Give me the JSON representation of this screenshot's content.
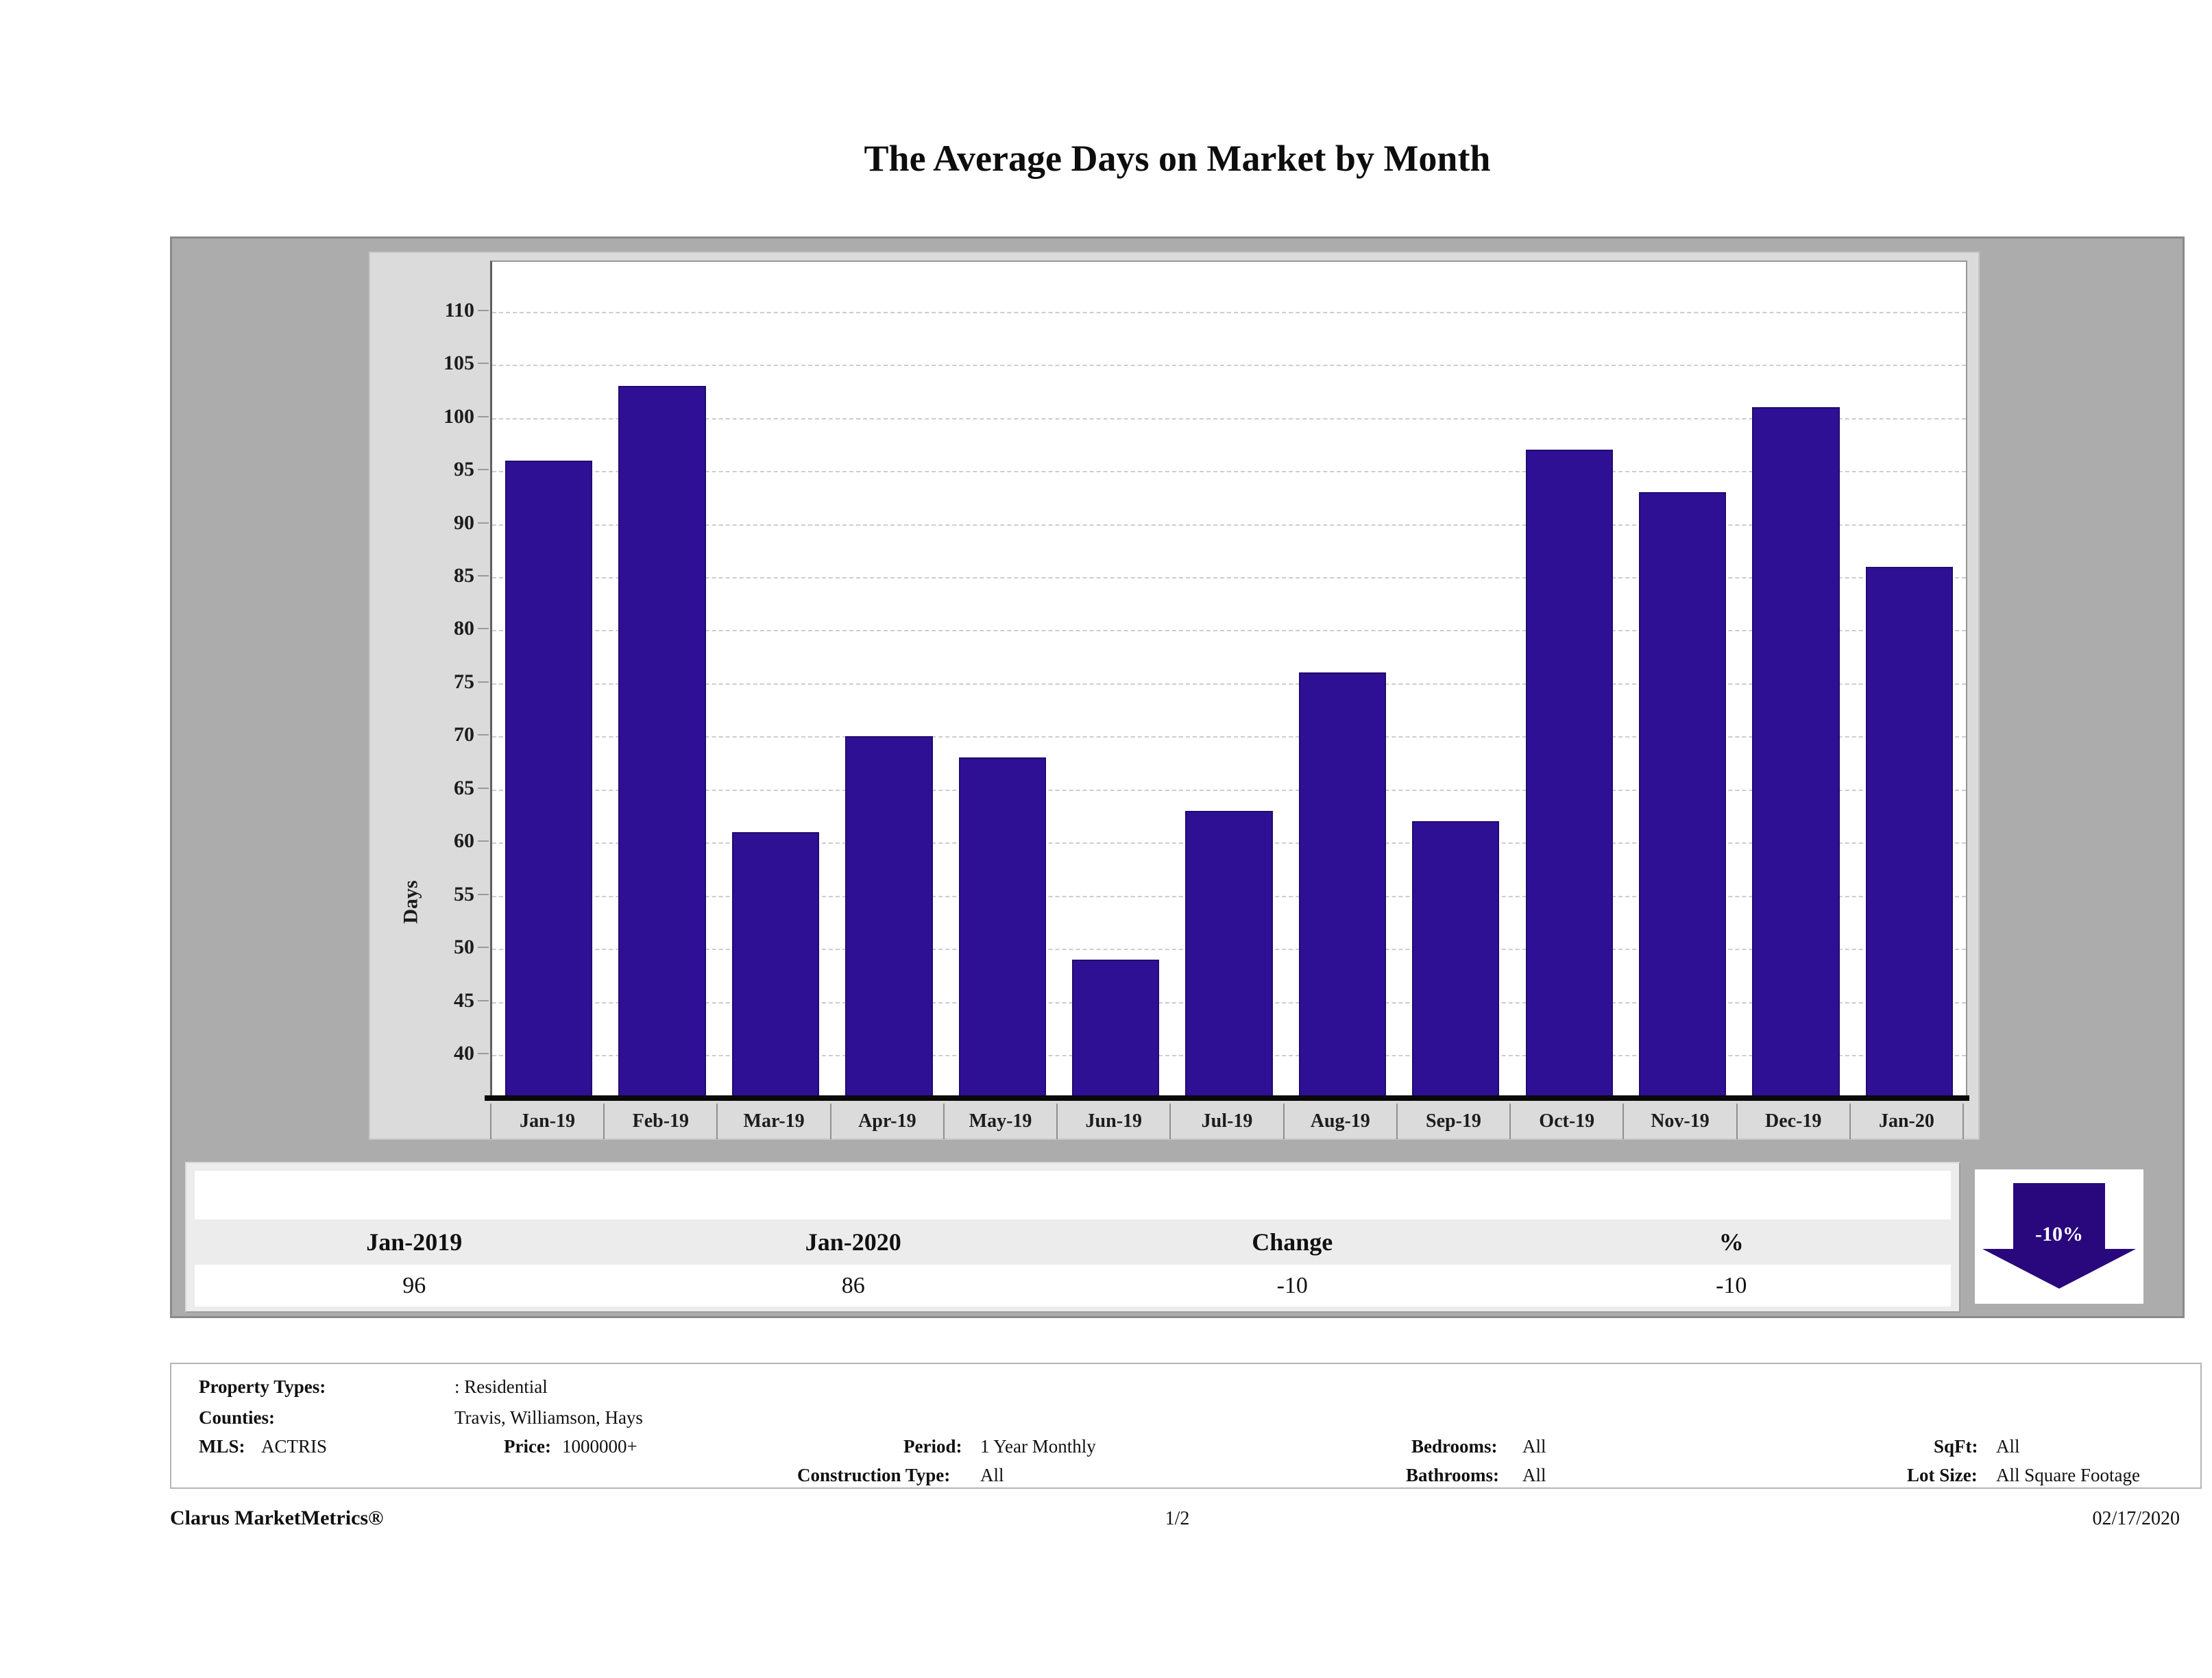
{
  "page": {
    "title": "The Average Days on Market by Month",
    "footer": {
      "brand": "Clarus MarketMetrics®",
      "page_num": "1/2",
      "date": "02/17/2020"
    }
  },
  "chart_data": {
    "type": "bar",
    "title": "The Average Days on Market by Month",
    "xlabel": "",
    "ylabel": "Days",
    "categories": [
      "Jan-19",
      "Feb-19",
      "Mar-19",
      "Apr-19",
      "May-19",
      "Jun-19",
      "Jul-19",
      "Aug-19",
      "Sep-19",
      "Oct-19",
      "Nov-19",
      "Dec-19",
      "Jan-20"
    ],
    "values": [
      96,
      103,
      61,
      70,
      68,
      49,
      63,
      76,
      62,
      97,
      93,
      101,
      86
    ],
    "yticks": [
      40,
      45,
      50,
      55,
      60,
      65,
      70,
      75,
      80,
      85,
      90,
      95,
      100,
      105,
      110
    ],
    "ylim": [
      35.8,
      114.7
    ],
    "grid": "horizontal-dashed",
    "legend_position": "none",
    "bar_color": "#2e1095",
    "bar_border_color": "#200b6e"
  },
  "summary": {
    "headers": [
      "Jan-2019",
      "Jan-2020",
      "Change",
      "%"
    ],
    "values": [
      "96",
      "86",
      "-10",
      "-10"
    ],
    "arrow_badge": {
      "label": "-10%",
      "direction": "down",
      "color": "#29087d"
    }
  },
  "details": {
    "property_types_label": "Property Types:",
    "property_types": ": Residential",
    "counties_label": "Counties:",
    "counties": "Travis, Williamson, Hays",
    "mls_label": "MLS:",
    "mls": "ACTRIS",
    "price_label": "Price:",
    "price": "1000000+",
    "period_label": "Period:",
    "period": "1 Year Monthly",
    "construction_label": "Construction Type:",
    "construction": "All",
    "bedrooms_label": "Bedrooms:",
    "bedrooms": "All",
    "bathrooms_label": "Bathrooms:",
    "bathrooms": "All",
    "sqft_label": "SqFt:",
    "sqft": "All",
    "lot_label": "Lot Size:",
    "lot": "All Square Footage"
  }
}
